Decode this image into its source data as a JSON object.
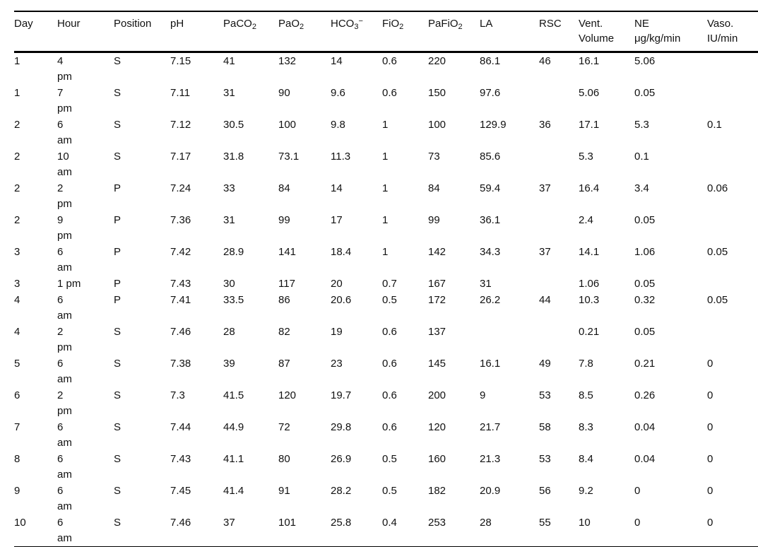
{
  "colors": {
    "text": "#111111",
    "rule": "#000000",
    "background": "#ffffff"
  },
  "table": {
    "description": "Daily ventilation and blood-gas measurements table",
    "columns": [
      {
        "id": "day",
        "label_parts": [
          {
            "t": "Day"
          }
        ]
      },
      {
        "id": "hour",
        "label_parts": [
          {
            "t": "Hour"
          }
        ]
      },
      {
        "id": "position",
        "label_parts": [
          {
            "t": "Position"
          }
        ]
      },
      {
        "id": "ph",
        "label_parts": [
          {
            "t": "pH"
          }
        ]
      },
      {
        "id": "paco2",
        "label_parts": [
          {
            "t": "PaCO"
          },
          {
            "t": "2",
            "s": "sub"
          }
        ]
      },
      {
        "id": "pao2",
        "label_parts": [
          {
            "t": "PaO"
          },
          {
            "t": "2",
            "s": "sub"
          }
        ]
      },
      {
        "id": "hco3",
        "label_parts": [
          {
            "t": "HCO"
          },
          {
            "t": "3",
            "s": "sub"
          },
          {
            "t": "−",
            "s": "sup"
          }
        ]
      },
      {
        "id": "fio2",
        "label_parts": [
          {
            "t": "FiO"
          },
          {
            "t": "2",
            "s": "sub"
          }
        ]
      },
      {
        "id": "pafio2",
        "label_parts": [
          {
            "t": "PaFiO"
          },
          {
            "t": "2",
            "s": "sub"
          }
        ]
      },
      {
        "id": "la",
        "label_parts": [
          {
            "t": "LA"
          }
        ]
      },
      {
        "id": "rsc",
        "label_parts": [
          {
            "t": "RSC"
          }
        ]
      },
      {
        "id": "vent-volume",
        "label_parts": [
          {
            "t": "Vent.\nVolume"
          }
        ]
      },
      {
        "id": "ne",
        "label_parts": [
          {
            "t": "NE\nμg/kg/min"
          }
        ]
      },
      {
        "id": "vaso",
        "label_parts": [
          {
            "t": "Vaso.\nIU/min"
          }
        ]
      }
    ],
    "rows": [
      [
        "1",
        "4\npm",
        "S",
        "7.15",
        "41",
        "132",
        "14",
        "0.6",
        "220",
        "86.1",
        "46",
        "16.1",
        "5.06",
        ""
      ],
      [
        "1",
        "7\npm",
        "S",
        "7.11",
        "31",
        "90",
        "9.6",
        "0.6",
        "150",
        "97.6",
        "",
        "5.06",
        "0.05",
        ""
      ],
      [
        "2",
        "6\nam",
        "S",
        "7.12",
        "30.5",
        "100",
        "9.8",
        "1",
        "100",
        "129.9",
        "36",
        "17.1",
        "5.3",
        "0.1"
      ],
      [
        "2",
        "10\nam",
        "S",
        "7.17",
        "31.8",
        "73.1",
        "11.3",
        "1",
        "73",
        "85.6",
        "",
        "5.3",
        "0.1",
        ""
      ],
      [
        "2",
        "2\npm",
        "P",
        "7.24",
        "33",
        "84",
        "14",
        "1",
        "84",
        "59.4",
        "37",
        "16.4",
        "3.4",
        "0.06"
      ],
      [
        "2",
        "9\npm",
        "P",
        "7.36",
        "31",
        "99",
        "17",
        "1",
        "99",
        "36.1",
        "",
        "2.4",
        "0.05",
        ""
      ],
      [
        "3",
        "6\nam",
        "P",
        "7.42",
        "28.9",
        "141",
        "18.4",
        "1",
        "142",
        "34.3",
        "37",
        "14.1",
        "1.06",
        "0.05"
      ],
      [
        "3",
        "1 pm",
        "P",
        "7.43",
        "30",
        "117",
        "20",
        "0.7",
        "167",
        "31",
        "",
        "1.06",
        "0.05",
        ""
      ],
      [
        "4",
        "6\nam",
        "P",
        "7.41",
        "33.5",
        "86",
        "20.6",
        "0.5",
        "172",
        "26.2",
        "44",
        "10.3",
        "0.32",
        "0.05"
      ],
      [
        "4",
        "2\npm",
        "S",
        "7.46",
        "28",
        "82",
        "19",
        "0.6",
        "137",
        "",
        "",
        "0.21",
        "0.05",
        ""
      ],
      [
        "5",
        "6\nam",
        "S",
        "7.38",
        "39",
        "87",
        "23",
        "0.6",
        "145",
        "16.1",
        "49",
        "7.8",
        "0.21",
        "0"
      ],
      [
        "6",
        "2\npm",
        "S",
        "7.3",
        "41.5",
        "120",
        "19.7",
        "0.6",
        "200",
        "9",
        "53",
        "8.5",
        "0.26",
        "0"
      ],
      [
        "7",
        "6\nam",
        "S",
        "7.44",
        "44.9",
        "72",
        "29.8",
        "0.6",
        "120",
        "21.7",
        "58",
        "8.3",
        "0.04",
        "0"
      ],
      [
        "8",
        "6\nam",
        "S",
        "7.43",
        "41.1",
        "80",
        "26.9",
        "0.5",
        "160",
        "21.3",
        "53",
        "8.4",
        "0.04",
        "0"
      ],
      [
        "9",
        "6\nam",
        "S",
        "7.45",
        "41.4",
        "91",
        "28.2",
        "0.5",
        "182",
        "20.9",
        "56",
        "9.2",
        "0",
        "0"
      ],
      [
        "10",
        "6\nam",
        "S",
        "7.46",
        "37",
        "101",
        "25.8",
        "0.4",
        "253",
        "28",
        "55",
        "10",
        "0",
        "0"
      ]
    ]
  }
}
